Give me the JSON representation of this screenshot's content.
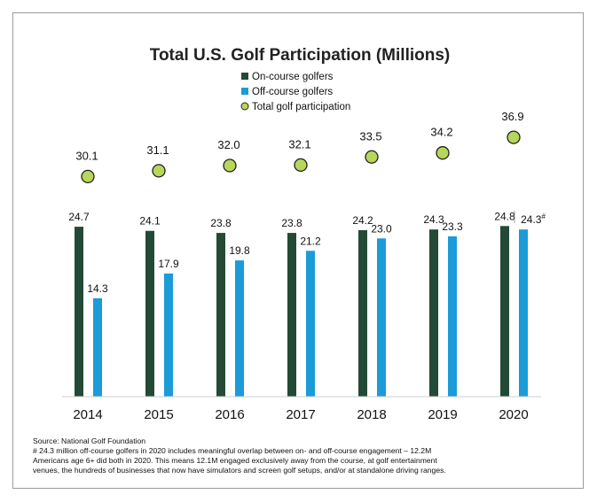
{
  "chart_data": {
    "type": "bar",
    "title": "Total U.S. Golf Participation (Millions)",
    "categories": [
      "2014",
      "2015",
      "2016",
      "2017",
      "2018",
      "2019",
      "2020"
    ],
    "series": [
      {
        "name": "On-course golfers",
        "color": "#234a36",
        "values": [
          24.7,
          24.1,
          23.8,
          23.8,
          24.2,
          24.3,
          24.8
        ]
      },
      {
        "name": "Off-course golfers",
        "color": "#1b9bd8",
        "values": [
          14.3,
          17.9,
          19.8,
          21.2,
          23.0,
          23.3,
          24.3
        ]
      },
      {
        "name": "Total golf participation",
        "type": "scatter",
        "color": "#b8d65a",
        "values": [
          30.1,
          31.1,
          32.0,
          32.1,
          33.5,
          34.2,
          36.9
        ]
      }
    ],
    "off_course_labels": [
      "14.3",
      "17.9",
      "19.8",
      "21.2",
      "23.0",
      "23.3",
      "24.3#"
    ],
    "on_course_labels": [
      "24.7",
      "24.1",
      "23.8",
      "23.8",
      "24.2",
      "24.3",
      "24.8"
    ],
    "total_labels": [
      "30.1",
      "31.1",
      "32.0",
      "32.1",
      "33.5",
      "34.2",
      "36.9"
    ],
    "xlabel": "",
    "ylabel": "",
    "ylim": [
      0,
      37
    ],
    "grid": false,
    "legend_position": "top-center"
  },
  "footnote": {
    "source": "Source: National Golf Foundation",
    "lines": [
      "# 24.3 million off-course golfers in 2020 includes meaningful overlap between on- and off-course engagement – 12.2M",
      "Americans age 6+ did both in 2020. This means 12.1M engaged exclusively away from the course, at golf entertainment",
      "venues, the hundreds of businesses that now have simulators and screen golf setups, and/or at standalone driving ranges."
    ]
  }
}
